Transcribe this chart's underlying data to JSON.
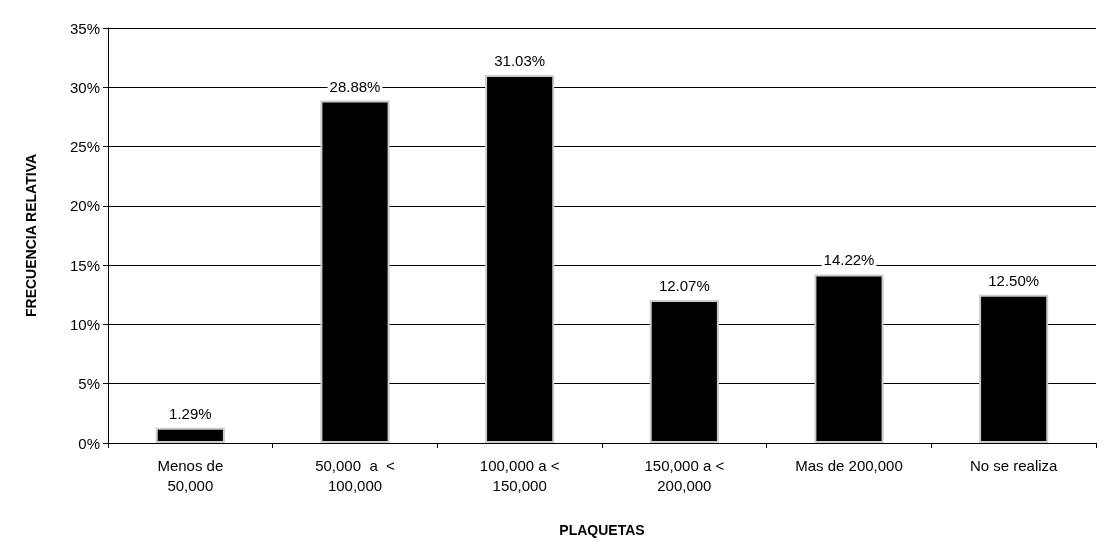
{
  "chart_data": {
    "type": "bar",
    "xlabel": "PLAQUETAS",
    "ylabel": "FRECUENCIA RELATIVA",
    "categories": [
      "Menos de\n50,000",
      "50,000  a  <\n100,000",
      "100,000 a <\n150,000",
      "150,000 a <\n200,000",
      "Mas de 200,000",
      "No se realiza"
    ],
    "values": [
      1.29,
      28.88,
      31.03,
      12.07,
      14.22,
      12.5
    ],
    "value_labels": [
      "1.29%",
      "28.88%",
      "31.03%",
      "12.07%",
      "14.22%",
      "12.50%"
    ],
    "color": "#000000",
    "ylim": [
      0,
      35
    ],
    "yticks": [
      {
        "value": 0,
        "label": "0%"
      },
      {
        "value": 5,
        "label": "5%"
      },
      {
        "value": 10,
        "label": "10%"
      },
      {
        "value": 15,
        "label": "15%"
      },
      {
        "value": 20,
        "label": "20%"
      },
      {
        "value": 25,
        "label": "25%"
      },
      {
        "value": 30,
        "label": "30%"
      },
      {
        "value": 35,
        "label": "35%"
      }
    ],
    "grid": "y"
  }
}
